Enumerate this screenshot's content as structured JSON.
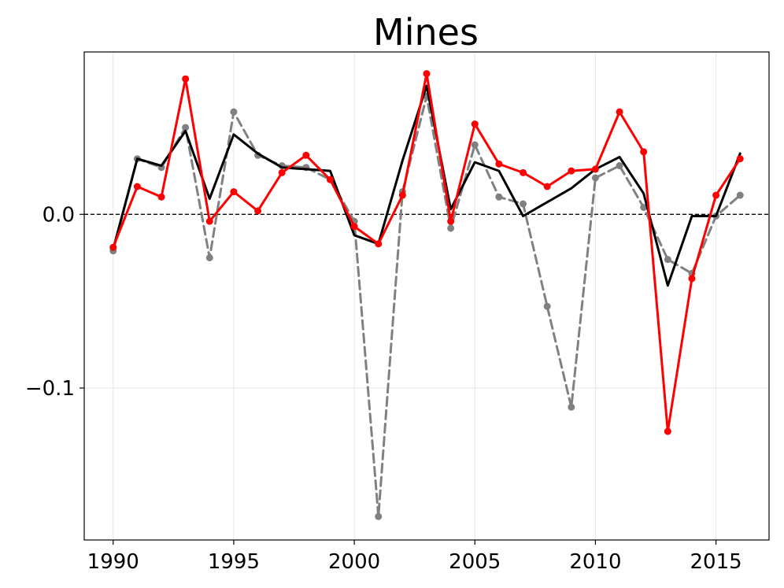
{
  "chart_data": {
    "type": "line",
    "title": "Mines",
    "xlabel": "",
    "ylabel": "",
    "xlim": [
      1988.8,
      2017.2
    ],
    "ylim": [
      -0.1875,
      0.0935
    ],
    "xticks": [
      1990,
      1995,
      2000,
      2005,
      2010,
      2015
    ],
    "xtick_labels": [
      "1990",
      "1995",
      "2000",
      "2005",
      "2010",
      "2015"
    ],
    "yticks": [
      0.0,
      -0.1
    ],
    "ytick_labels": [
      "0.0",
      "−0.1"
    ],
    "grid": true,
    "reference_line": 0.0,
    "x": [
      1990,
      1991,
      1992,
      1993,
      1994,
      1995,
      1996,
      1997,
      1998,
      1999,
      2000,
      2001,
      2002,
      2003,
      2004,
      2005,
      2006,
      2007,
      2008,
      2009,
      2010,
      2011,
      2012,
      2013,
      2014,
      2015,
      2016
    ],
    "series": [
      {
        "color": "#808080",
        "style": "dashed",
        "markers": true,
        "values": [
          -0.021,
          0.032,
          0.027,
          0.05,
          -0.025,
          0.059,
          0.034,
          0.028,
          0.027,
          0.02,
          -0.004,
          -0.174,
          0.013,
          0.068,
          -0.008,
          0.04,
          0.01,
          0.006,
          -0.053,
          -0.111,
          0.021,
          0.028,
          0.004,
          -0.026,
          -0.034,
          -0.001,
          0.011
        ]
      },
      {
        "color": "#000000",
        "style": "solid",
        "markers": false,
        "values": [
          -0.02,
          0.032,
          0.028,
          0.048,
          0.009,
          0.046,
          0.035,
          0.027,
          0.026,
          0.025,
          -0.012,
          -0.017,
          0.031,
          0.074,
          0.003,
          0.03,
          0.025,
          -0.001,
          0.007,
          0.015,
          0.026,
          0.033,
          0.012,
          -0.041,
          -0.001,
          -0.001,
          0.035
        ]
      },
      {
        "color": "#ff0000",
        "style": "solid",
        "markers": true,
        "values": [
          -0.019,
          0.016,
          0.01,
          0.078,
          -0.004,
          0.013,
          0.002,
          0.024,
          0.034,
          0.02,
          -0.007,
          -0.017,
          0.011,
          0.081,
          -0.004,
          0.052,
          0.029,
          0.024,
          0.016,
          0.025,
          0.026,
          0.059,
          0.036,
          -0.125,
          -0.037,
          0.011,
          0.032
        ]
      }
    ]
  }
}
